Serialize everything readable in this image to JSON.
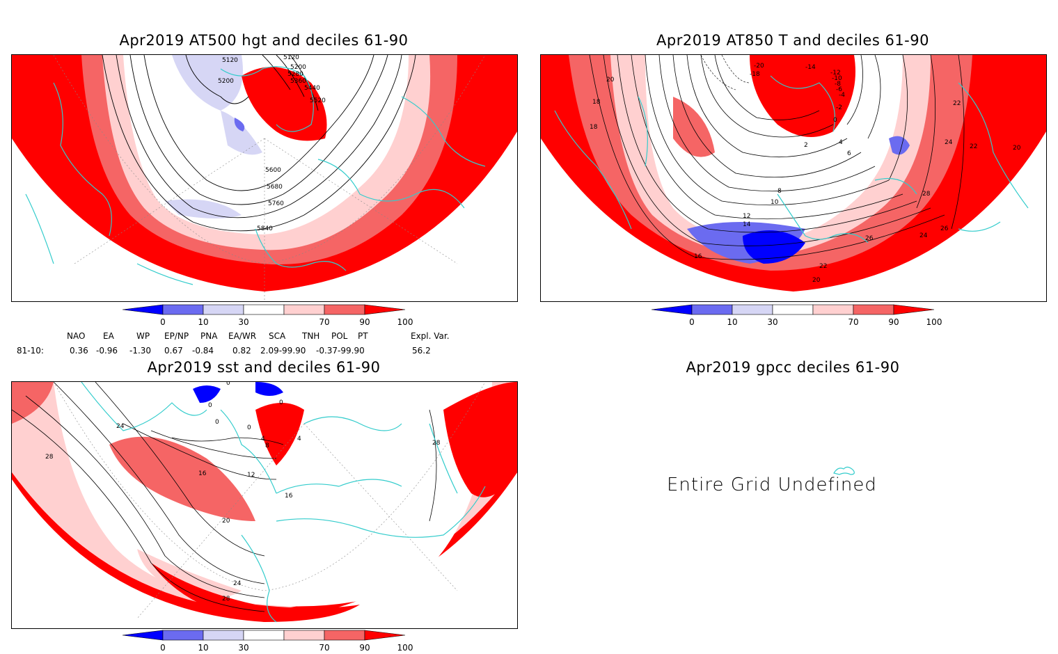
{
  "panels": {
    "hgt500": {
      "title": "Apr2019 AT500 hgt and deciles 61-90",
      "contour_labels": [
        "5120",
        "5120",
        "5200",
        "5200",
        "5280",
        "5360",
        "5440",
        "5520",
        "5600",
        "5680",
        "5760",
        "5840"
      ]
    },
    "t850": {
      "title": "Apr2019 AT850 T and deciles 61-90",
      "contour_labels": [
        "-20",
        "-18",
        "-14",
        "-12",
        "-10",
        "-8",
        "-6",
        "-4",
        "-2",
        "0",
        "2",
        "4",
        "6",
        "8",
        "10",
        "12",
        "14",
        "16",
        "18",
        "18",
        "20",
        "20",
        "22",
        "22",
        "24",
        "24",
        "26",
        "26",
        "28",
        "20",
        "22"
      ]
    },
    "sst": {
      "title": "Apr2019 sst and deciles 61-90",
      "contour_labels": [
        "0",
        "0",
        "0",
        "0",
        "0",
        "4",
        "4",
        "8",
        "12",
        "16",
        "16",
        "20",
        "24",
        "28",
        "28",
        "28",
        "24"
      ]
    },
    "gpcc": {
      "title": "Apr2019 gpcc deciles 61-90",
      "message": "Entire Grid Undefined"
    }
  },
  "colorbar": {
    "ticks": [
      "0",
      "10",
      "30",
      "70",
      "90",
      "100"
    ],
    "colors": [
      "#0000ff",
      "#6b6bf0",
      "#d6d6f5",
      "#ffffff",
      "#ffd0d0",
      "#f56565",
      "#ff0000"
    ]
  },
  "indices": {
    "headers": [
      "NAO",
      "EA",
      "WP",
      "EP/NP",
      "PNA",
      "EA/WR",
      "SCA",
      "TNH",
      "POL",
      "PT",
      "Expl. Var."
    ],
    "row_label": "81-10:",
    "values": [
      "0.36",
      "-0.96",
      "-1.30",
      "0.67",
      "-0.84",
      "0.82",
      "2.09-99.90",
      "-0.37-99.90",
      "56.2"
    ]
  },
  "colors": {
    "coast": "#33cccc",
    "anom_strong": "#ff0000",
    "anom_mid": "#f56565",
    "anom_light": "#ffd0d0",
    "neg_strong": "#0000ff",
    "neg_mid": "#6b6bf0",
    "neg_light": "#d6d6f5"
  }
}
